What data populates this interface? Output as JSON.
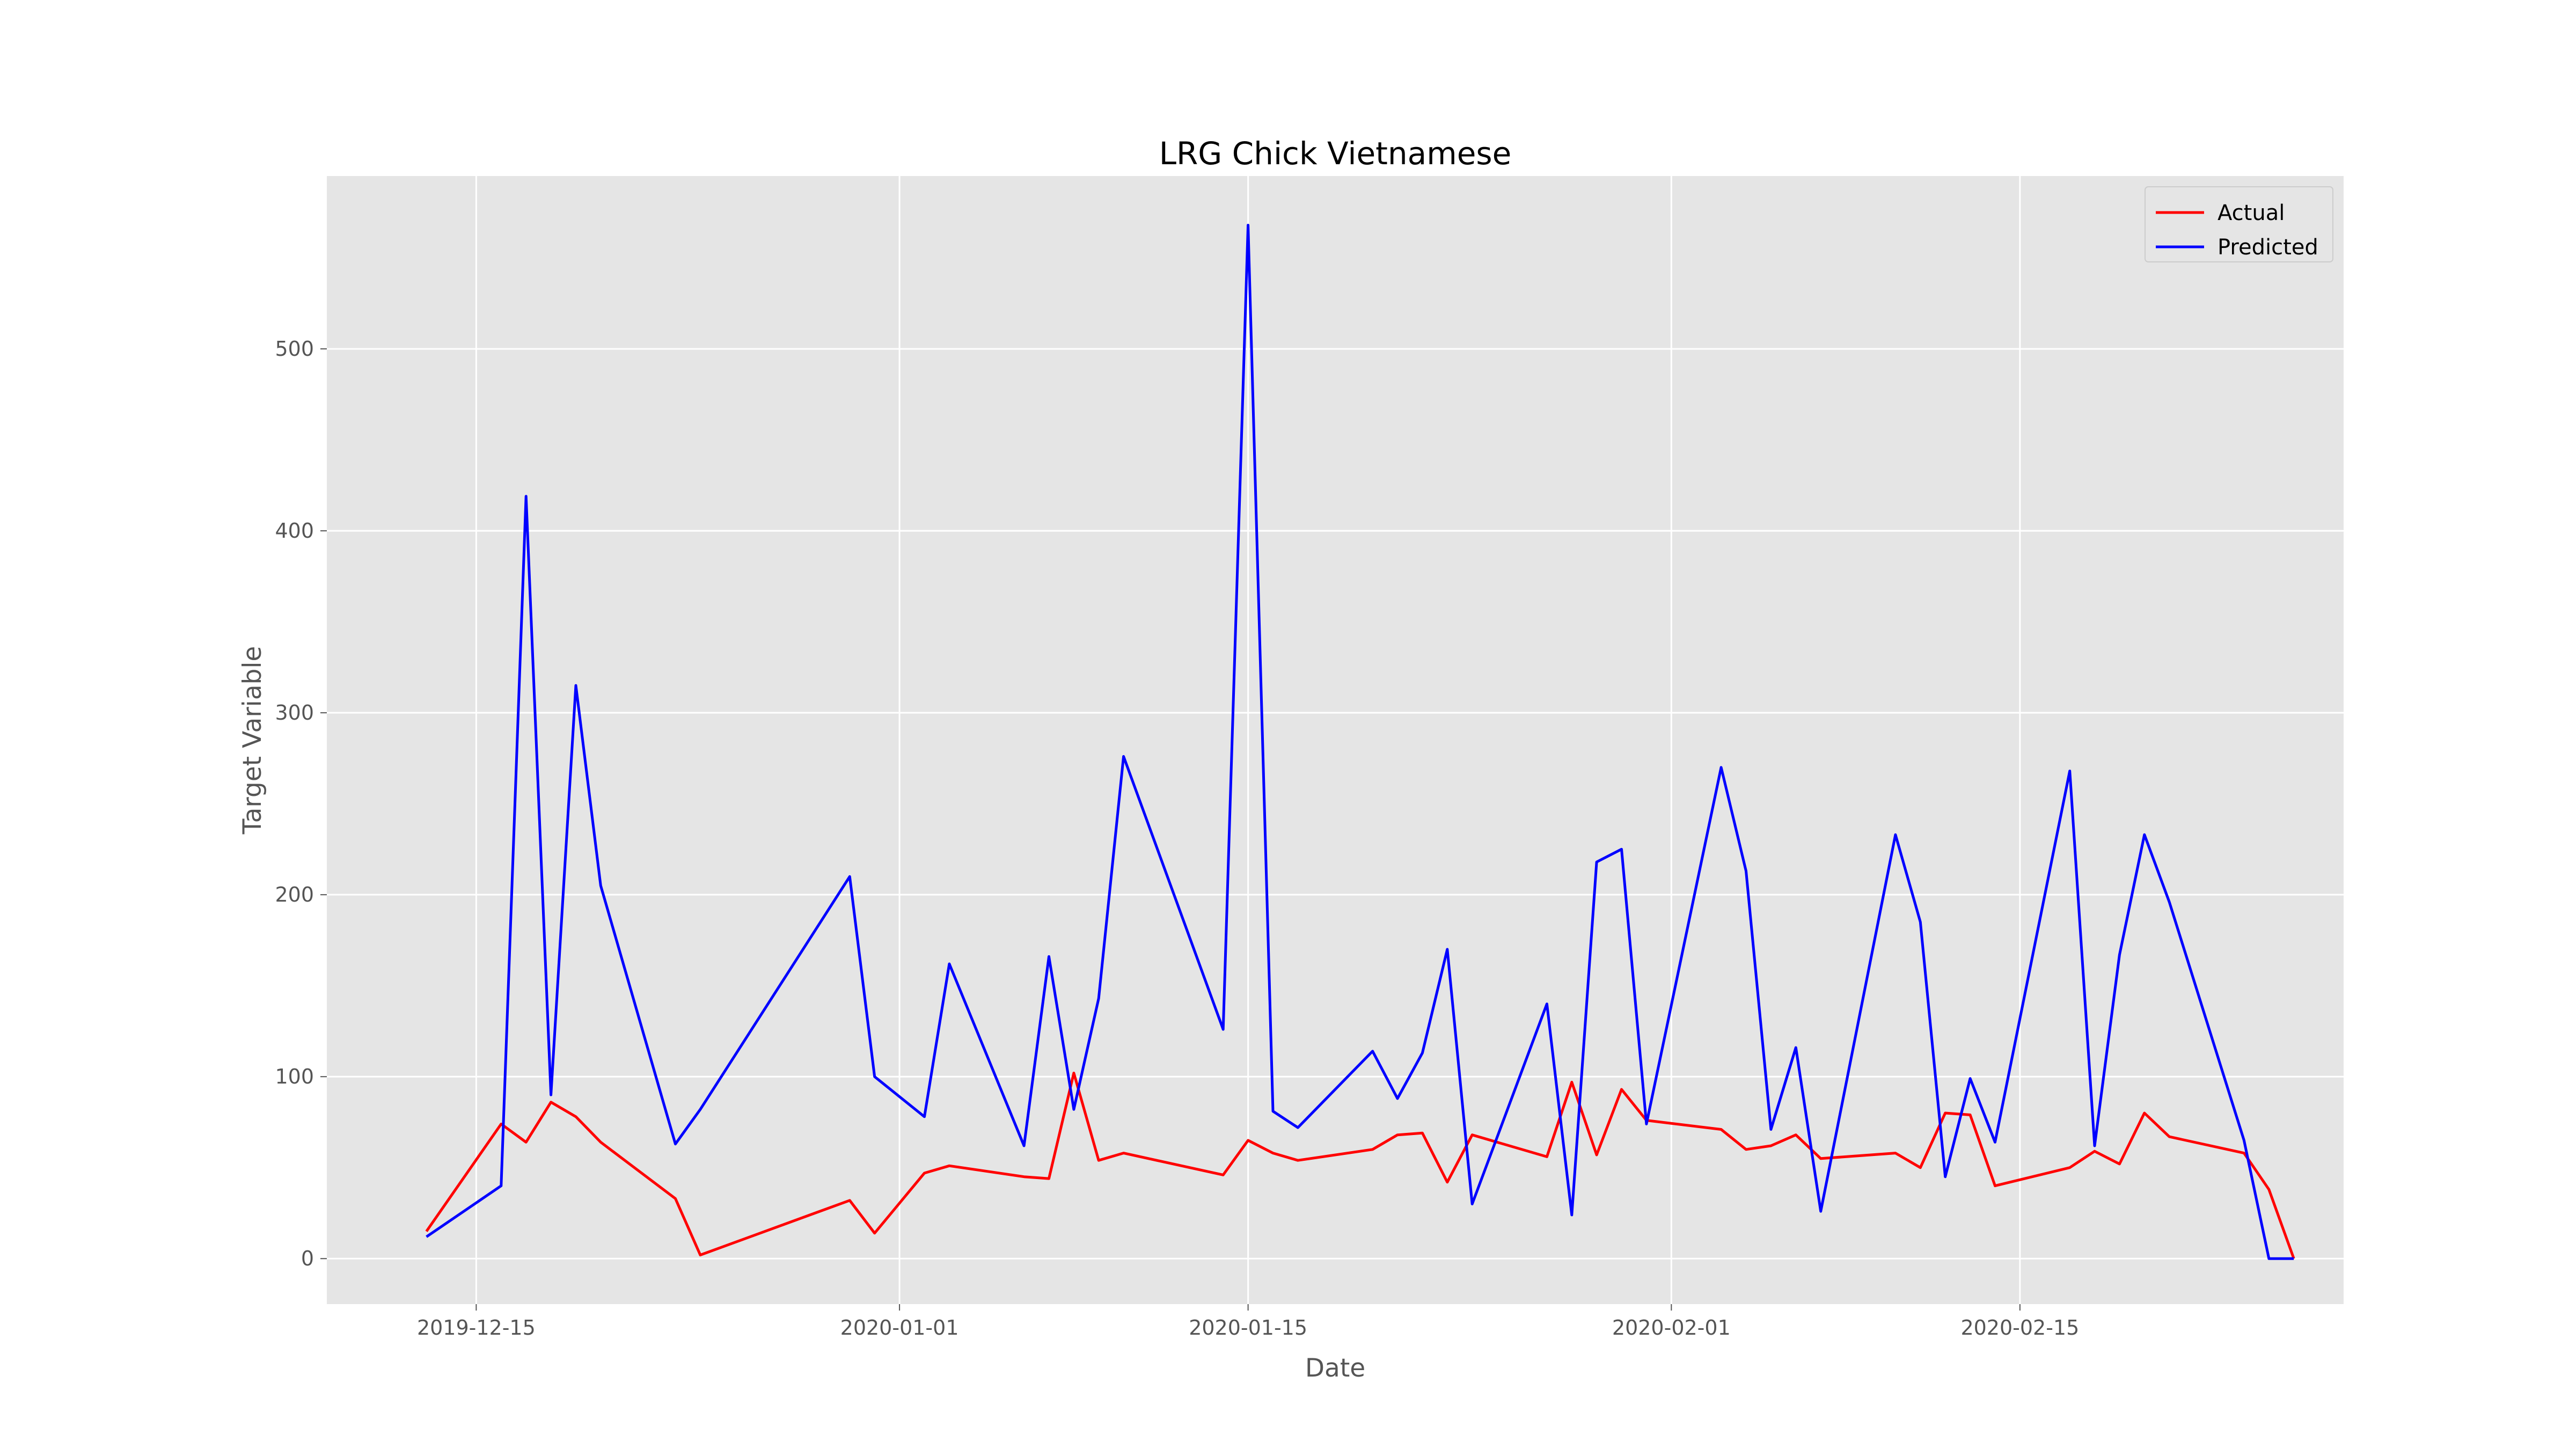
{
  "chart_data": {
    "type": "line",
    "title": "LRG Chick Vietnamese",
    "xlabel": "Date",
    "ylabel": "Target Variable",
    "x_is_date": true,
    "xlim": [
      "2019-12-09",
      "2020-02-28"
    ],
    "ylim": [
      -25,
      595
    ],
    "x_ticks": [
      "2019-12-15",
      "2020-01-01",
      "2020-01-15",
      "2020-02-01",
      "2020-02-15"
    ],
    "y_ticks": [
      0,
      100,
      200,
      300,
      400,
      500
    ],
    "grid": true,
    "legend_position": "top-right",
    "x": [
      "2019-12-13",
      "2019-12-16",
      "2019-12-17",
      "2019-12-18",
      "2019-12-19",
      "2019-12-20",
      "2019-12-23",
      "2019-12-24",
      "2019-12-30",
      "2019-12-31",
      "2020-01-02",
      "2020-01-03",
      "2020-01-06",
      "2020-01-07",
      "2020-01-08",
      "2020-01-09",
      "2020-01-10",
      "2020-01-14",
      "2020-01-15",
      "2020-01-16",
      "2020-01-17",
      "2020-01-20",
      "2020-01-21",
      "2020-01-22",
      "2020-01-23",
      "2020-01-24",
      "2020-01-27",
      "2020-01-28",
      "2020-01-29",
      "2020-01-30",
      "2020-01-31",
      "2020-02-03",
      "2020-02-04",
      "2020-02-05",
      "2020-02-06",
      "2020-02-07",
      "2020-02-10",
      "2020-02-11",
      "2020-02-12",
      "2020-02-13",
      "2020-02-14",
      "2020-02-17",
      "2020-02-18",
      "2020-02-19",
      "2020-02-20",
      "2020-02-21",
      "2020-02-24",
      "2020-02-25",
      "2020-02-26"
    ],
    "series": [
      {
        "name": "Actual",
        "color": "#ff0000",
        "values": [
          15,
          74,
          64,
          86,
          78,
          64,
          33,
          2,
          32,
          14,
          47,
          51,
          45,
          44,
          102,
          54,
          58,
          46,
          65,
          58,
          54,
          60,
          68,
          69,
          42,
          68,
          56,
          97,
          57,
          93,
          76,
          71,
          60,
          62,
          68,
          55,
          58,
          50,
          80,
          79,
          40,
          50,
          59,
          52,
          80,
          67,
          58,
          38,
          0
        ]
      },
      {
        "name": "Predicted",
        "color": "#0000ff",
        "values": [
          12,
          40,
          419,
          90,
          315,
          205,
          63,
          82,
          210,
          100,
          78,
          162,
          62,
          166,
          82,
          143,
          276,
          126,
          568,
          81,
          72,
          114,
          88,
          113,
          170,
          30,
          140,
          24,
          218,
          225,
          74,
          270,
          213,
          71,
          116,
          26,
          233,
          185,
          45,
          99,
          64,
          268,
          62,
          167,
          233,
          196,
          65,
          0,
          0
        ]
      }
    ]
  }
}
